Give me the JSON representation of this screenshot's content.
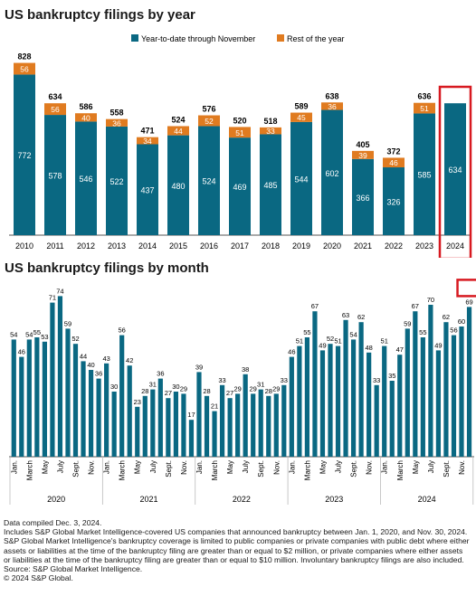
{
  "colors": {
    "ytd": "#0a6882",
    "rest": "#e07b20",
    "highlight": "#d71920",
    "axis": "#555555"
  },
  "chart_data": [
    {
      "type": "bar",
      "title": "US bankruptcy filings by year",
      "stacked": true,
      "categories": [
        "2010",
        "2011",
        "2012",
        "2013",
        "2014",
        "2015",
        "2016",
        "2017",
        "2018",
        "2019",
        "2020",
        "2021",
        "2022",
        "2023",
        "2024"
      ],
      "series": [
        {
          "name": "Year-to-date through November",
          "values": [
            772,
            578,
            546,
            522,
            437,
            480,
            524,
            469,
            485,
            544,
            602,
            366,
            326,
            585,
            634
          ]
        },
        {
          "name": "Rest of the year",
          "values": [
            56,
            56,
            40,
            36,
            34,
            44,
            52,
            51,
            33,
            45,
            36,
            39,
            46,
            51,
            null
          ]
        }
      ],
      "totals": [
        "828",
        "634",
        "586",
        "558",
        "471",
        "524",
        "576",
        "520",
        "518",
        "589",
        "638",
        "405",
        "372",
        "636",
        ""
      ],
      "legend_position": "top-right",
      "highlighted_category": "2024"
    },
    {
      "type": "bar",
      "title": "US bankruptcy filings by month",
      "month_ticks": [
        "Jan.",
        "March",
        "May",
        "July",
        "Sept.",
        "Nov."
      ],
      "years": [
        "2020",
        "2021",
        "2022",
        "2023",
        "2024"
      ],
      "values": [
        54,
        46,
        54,
        55,
        53,
        71,
        74,
        59,
        52,
        44,
        40,
        36,
        43,
        30,
        56,
        42,
        23,
        28,
        31,
        36,
        27,
        30,
        29,
        17,
        39,
        28,
        21,
        33,
        27,
        29,
        38,
        29,
        31,
        28,
        29,
        33,
        46,
        51,
        55,
        67,
        49,
        52,
        51,
        63,
        54,
        62,
        48,
        33,
        51,
        35,
        47,
        59,
        67,
        55,
        70,
        49,
        62,
        56,
        60,
        69
      ],
      "highlighted_value": "69"
    }
  ],
  "notes": [
    "Data compiled Dec. 3, 2024.",
    "Includes S&P Global Market Intelligence-covered US companies that announced bankruptcy between Jan. 1, 2020, and Nov. 30, 2024.",
    "S&P Global Market Intelligence's bankruptcy coverage is limited to public companies or private companies with public debt where either assets or liabilities at the time of the bankruptcy filing are greater than or equal to $2 million, or private companies where either assets or liabilities at the time of the bankruptcy filing are greater than or equal to $10 million. Involuntary bankruptcy filings are also included.",
    "Source: S&P Global Market Intelligence.",
    "© 2024 S&P Global."
  ]
}
